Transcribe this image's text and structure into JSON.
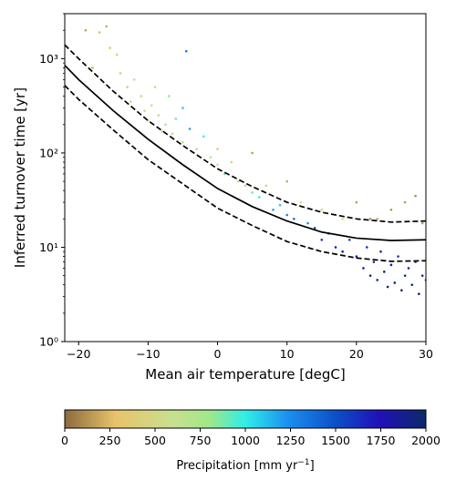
{
  "chart_data": {
    "type": "scatter",
    "xlabel": "Mean air temperature [degC]",
    "ylabel": "Inferred turnover time [yr]",
    "xlim": [
      -22,
      30
    ],
    "ylim": [
      1,
      3000
    ],
    "yscale": "log",
    "grid": false,
    "x_ticks": [
      -20,
      -10,
      0,
      10,
      20,
      30
    ],
    "x_tick_labels": [
      "−20",
      "−10",
      "0",
      "10",
      "20",
      "30"
    ],
    "y_ticks": [
      1,
      10,
      100,
      1000
    ],
    "y_tick_labels": [
      "10⁰",
      "10¹",
      "10²",
      "10³"
    ],
    "colorbar": {
      "label_prefix": "Precipitation [mm yr",
      "label_exponent": "−1",
      "label_suffix": "]",
      "range": [
        0,
        2000
      ],
      "ticks": [
        0,
        250,
        500,
        750,
        1000,
        1250,
        1500,
        1750,
        2000
      ],
      "tick_labels": [
        "0",
        "250",
        "500",
        "750",
        "1000",
        "1250",
        "1500",
        "1750",
        "2000"
      ],
      "colormap": [
        [
          0,
          "#8b6a3e"
        ],
        [
          0.14,
          "#e8c36a"
        ],
        [
          0.3,
          "#c8e090"
        ],
        [
          0.4,
          "#a0e888"
        ],
        [
          0.5,
          "#30eee8"
        ],
        [
          0.62,
          "#1a8ef0"
        ],
        [
          0.75,
          "#0b50c8"
        ],
        [
          0.87,
          "#2110b8"
        ],
        [
          1,
          "#0a2a6a"
        ]
      ]
    },
    "series": [
      {
        "type": "line",
        "style": "solid",
        "color": "#000000",
        "x": [
          -22,
          -20,
          -15,
          -10,
          -5,
          0,
          5,
          10,
          15,
          20,
          25,
          30
        ],
        "y": [
          850,
          600,
          280,
          140,
          75,
          42,
          27,
          19,
          14.5,
          12.5,
          11.8,
          12
        ]
      },
      {
        "type": "line",
        "style": "dashed",
        "color": "#000000",
        "x": [
          -22,
          -20,
          -15,
          -10,
          -5,
          0,
          5,
          10,
          15,
          20,
          25,
          30
        ],
        "y": [
          1400,
          1000,
          450,
          220,
          120,
          68,
          44,
          30,
          23.5,
          20,
          18.5,
          19
        ]
      },
      {
        "type": "line",
        "style": "dashed",
        "color": "#000000",
        "x": [
          -22,
          -20,
          -15,
          -10,
          -5,
          0,
          5,
          10,
          15,
          20,
          25,
          30
        ],
        "y": [
          520,
          370,
          175,
          85,
          47,
          26,
          17,
          11.5,
          9,
          7.7,
          7.1,
          7.2
        ]
      },
      {
        "type": "scatter",
        "marker_size": "small",
        "points": [
          [
            -19.0,
            2000,
            180
          ],
          [
            -17.0,
            1900,
            260
          ],
          [
            -16.0,
            2200,
            200
          ],
          [
            -18.0,
            800,
            200
          ],
          [
            -15.5,
            1300,
            350
          ],
          [
            -14.5,
            1100,
            330
          ],
          [
            -14.0,
            700,
            380
          ],
          [
            -13.0,
            500,
            420
          ],
          [
            -12.5,
            350,
            470
          ],
          [
            -12.0,
            600,
            520
          ],
          [
            -11.0,
            400,
            500
          ],
          [
            -10.5,
            280,
            560
          ],
          [
            -10.0,
            220,
            600
          ],
          [
            -9.5,
            320,
            650
          ],
          [
            -9.0,
            500,
            700
          ],
          [
            -8.5,
            250,
            680
          ],
          [
            -8.0,
            170,
            600
          ],
          [
            -7.5,
            200,
            780
          ],
          [
            -7.0,
            400,
            820
          ],
          [
            -6.5,
            160,
            700
          ],
          [
            -6.0,
            230,
            900
          ],
          [
            -5.0,
            300,
            1100
          ],
          [
            -5.0,
            130,
            750
          ],
          [
            -4.5,
            1200,
            1300
          ],
          [
            -4.0,
            180,
            1200
          ],
          [
            -3.0,
            110,
            800
          ],
          [
            -2.0,
            150,
            1000
          ],
          [
            -1.0,
            90,
            700
          ],
          [
            0.0,
            75,
            600
          ],
          [
            0.0,
            110,
            300
          ],
          [
            1.0,
            60,
            900
          ],
          [
            2.0,
            80,
            450
          ],
          [
            3.0,
            50,
            700
          ],
          [
            4.0,
            45,
            800
          ],
          [
            5.0,
            38,
            900
          ],
          [
            5.0,
            100,
            150
          ],
          [
            6.0,
            34,
            1000
          ],
          [
            7.0,
            45,
            400
          ],
          [
            8.0,
            25,
            1200
          ],
          [
            9.0,
            28,
            1100
          ],
          [
            10.0,
            22,
            1300
          ],
          [
            10.0,
            50,
            200
          ],
          [
            11.0,
            20,
            1400
          ],
          [
            12.0,
            30,
            500
          ],
          [
            13.0,
            18,
            1250
          ],
          [
            14.0,
            16,
            1500
          ],
          [
            15.0,
            25,
            700
          ],
          [
            15.0,
            12,
            1600
          ],
          [
            16.0,
            14,
            1450
          ],
          [
            17.0,
            10,
            1700
          ],
          [
            18.0,
            20,
            500
          ],
          [
            18.0,
            9,
            1750
          ],
          [
            19.0,
            12,
            1550
          ],
          [
            20.0,
            8,
            1800
          ],
          [
            20.0,
            30,
            150
          ],
          [
            21.0,
            6,
            1900
          ],
          [
            21.5,
            10,
            1600
          ],
          [
            22.0,
            5,
            2000
          ],
          [
            22.5,
            7,
            1850
          ],
          [
            23.0,
            20,
            200
          ],
          [
            23.0,
            4.5,
            1950
          ],
          [
            23.5,
            9,
            1700
          ],
          [
            24.0,
            5.5,
            2000
          ],
          [
            24.5,
            3.8,
            1900
          ],
          [
            25.0,
            6.5,
            1800
          ],
          [
            25.0,
            25,
            120
          ],
          [
            25.5,
            4.2,
            2000
          ],
          [
            26.0,
            8,
            1650
          ],
          [
            26.5,
            3.5,
            2000
          ],
          [
            27.0,
            5,
            1900
          ],
          [
            27.0,
            30,
            150
          ],
          [
            27.5,
            6,
            1750
          ],
          [
            28.0,
            4,
            2000
          ],
          [
            28.5,
            35,
            100
          ],
          [
            28.5,
            7,
            1600
          ],
          [
            29.0,
            3.2,
            2000
          ],
          [
            29.5,
            5,
            1850
          ],
          [
            29.5,
            18,
            150
          ],
          [
            30.0,
            4.5,
            1950
          ],
          [
            22.0,
            20,
            100
          ]
        ]
      }
    ]
  }
}
